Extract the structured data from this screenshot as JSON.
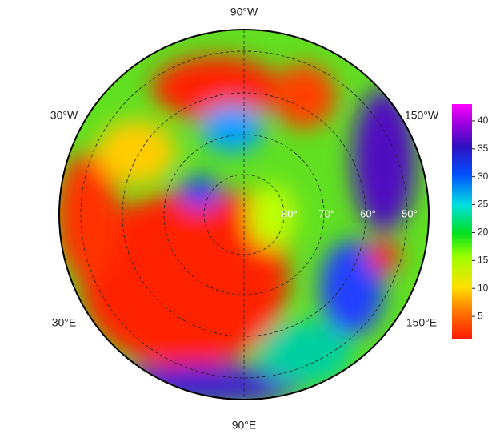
{
  "map": {
    "longitude_labels": [
      "90°W",
      "30°W",
      "150°W",
      "30°E",
      "150°E",
      "90°E"
    ],
    "latitude_labels": [
      "80°",
      "70°",
      "60°",
      "50°"
    ],
    "colorbar": {
      "lim": [
        1,
        43
      ],
      "ticks": [
        5,
        10,
        15,
        20,
        25,
        30,
        35,
        40
      ]
    }
  }
}
